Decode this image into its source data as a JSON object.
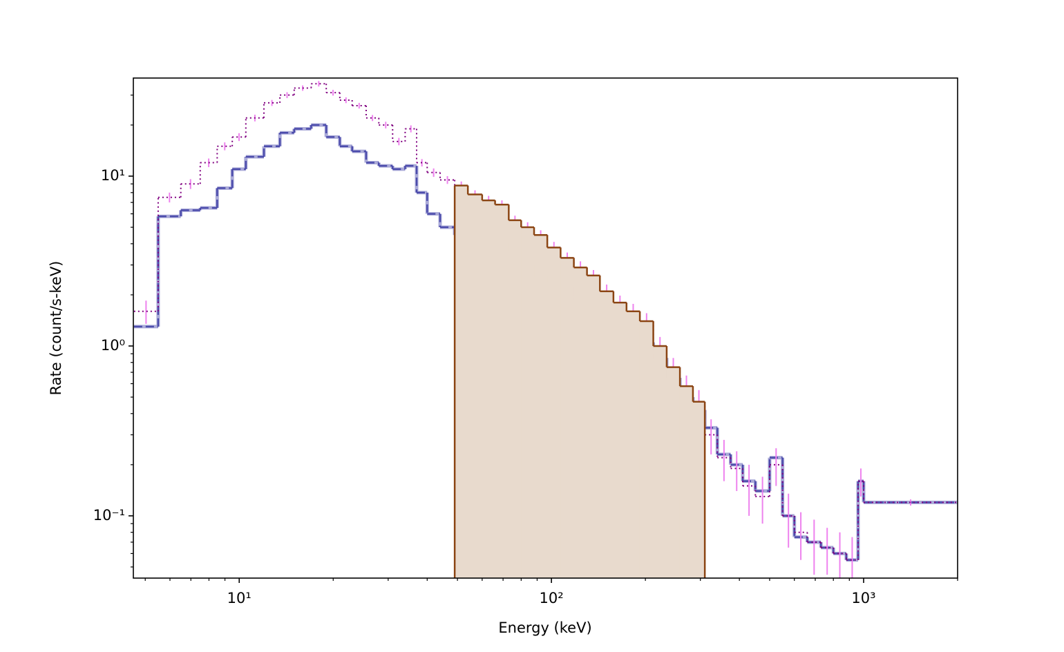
{
  "chart_data": {
    "type": "step",
    "xlabel": "Energy (keV)",
    "ylabel": "Rate (count/s-keV)",
    "xlog": true,
    "ylog": true,
    "xlim": [
      4.58,
      2000
    ],
    "ylim": [
      0.043,
      37.8
    ],
    "xticks": [
      {
        "value": 10,
        "label": "10¹"
      },
      {
        "value": 100,
        "label": "10²"
      },
      {
        "value": 1000,
        "label": "10³"
      }
    ],
    "yticks": [
      {
        "value": 0.1,
        "label": "10⁻¹"
      },
      {
        "value": 1,
        "label": "10⁰"
      },
      {
        "value": 10,
        "label": "10¹"
      }
    ],
    "xminorticks": [
      5,
      6,
      7,
      8,
      9,
      20,
      30,
      40,
      50,
      60,
      70,
      80,
      90,
      200,
      300,
      400,
      500,
      600,
      700,
      800,
      900,
      2000
    ],
    "yminorticks": [
      0.05,
      0.06,
      0.07,
      0.08,
      0.09,
      0.2,
      0.3,
      0.4,
      0.5,
      0.6,
      0.7,
      0.8,
      0.9,
      2,
      3,
      4,
      5,
      6,
      7,
      8,
      9,
      20,
      30
    ],
    "series": [
      {
        "style": "dashed",
        "color": "#4b4bab",
        "underlay": "#aaaad8",
        "bins": [
          4.6,
          5.5,
          6.5,
          7.5,
          8.5,
          9.5,
          10.5,
          12,
          13.5,
          15,
          17,
          19,
          21,
          23,
          25.5,
          28,
          31,
          34,
          37,
          40,
          44,
          49,
          54,
          60,
          66,
          73,
          80,
          88,
          97,
          107,
          118,
          130,
          143,
          158,
          174,
          192,
          212,
          234,
          258,
          284,
          310,
          340,
          375,
          410,
          450,
          500,
          550,
          600,
          660,
          730,
          800,
          880,
          960,
          1000,
          2000
        ],
        "values": [
          1.3,
          5.8,
          6.3,
          6.5,
          8.5,
          11,
          13,
          15,
          18,
          19,
          20,
          17,
          15,
          14,
          12,
          11.5,
          11,
          11.5,
          8,
          6,
          5,
          4.5,
          4.5,
          4.2,
          4.0,
          3.6,
          3.0,
          2.6,
          2.4,
          2.2,
          1.9,
          1.7,
          1.5,
          1.3,
          1.0,
          1.05,
          0.85,
          0.65,
          0.5,
          0.42,
          0.33,
          0.23,
          0.2,
          0.16,
          0.14,
          0.22,
          0.1,
          0.075,
          0.07,
          0.065,
          0.06,
          0.055,
          0.16,
          0.12
        ]
      },
      {
        "style": "dotted",
        "color": "#800080",
        "error_color": "#ee82ee",
        "bins": [
          4.6,
          5.5,
          6.5,
          7.5,
          8.5,
          9.5,
          10.5,
          12,
          13.5,
          15,
          17,
          19,
          21,
          23,
          25.5,
          28,
          31,
          34,
          37,
          40,
          44,
          49,
          54,
          60,
          66,
          73,
          80,
          88,
          97,
          107,
          118,
          130,
          143,
          158,
          174,
          192,
          212,
          234,
          258,
          284,
          310,
          340,
          375,
          410,
          450,
          500,
          550,
          600,
          660,
          730,
          800,
          880,
          960,
          1000,
          2000
        ],
        "values": [
          1.6,
          7.5,
          9,
          12,
          15,
          17,
          22,
          27,
          30,
          33,
          35,
          31,
          28,
          26,
          22,
          20,
          16,
          19,
          12,
          10.5,
          9.5,
          8.8,
          7.8,
          7.2,
          6.8,
          5.5,
          5.0,
          4.5,
          3.8,
          3.3,
          2.9,
          2.6,
          2.1,
          1.8,
          1.6,
          1.4,
          1.0,
          0.75,
          0.58,
          0.47,
          0.3,
          0.22,
          0.19,
          0.15,
          0.13,
          0.2,
          0.1,
          0.08,
          0.07,
          0.065,
          0.06,
          0.055,
          0.16,
          0.12
        ],
        "errors": [
          0.25,
          0.5,
          0.6,
          0.7,
          0.8,
          0.9,
          1.0,
          1.1,
          1.2,
          1.2,
          1.3,
          1.2,
          1.1,
          1.0,
          0.9,
          0.9,
          0.8,
          0.9,
          0.6,
          0.6,
          0.5,
          0.5,
          0.45,
          0.45,
          0.4,
          0.35,
          0.35,
          0.3,
          0.3,
          0.25,
          0.25,
          0.2,
          0.2,
          0.18,
          0.17,
          0.16,
          0.13,
          0.1,
          0.09,
          0.08,
          0.07,
          0.06,
          0.05,
          0.05,
          0.04,
          0.05,
          0.035,
          0.025,
          0.025,
          0.02,
          0.02,
          0.02,
          0.03,
          0.005
        ]
      },
      {
        "style": "solid",
        "color": "#8b4513",
        "fill": "#e8dacd",
        "bins": [
          49,
          54,
          60,
          66,
          73,
          80,
          88,
          97,
          107,
          118,
          130,
          143,
          158,
          174,
          192,
          212,
          234,
          258,
          284,
          310
        ],
        "values": [
          8.8,
          7.8,
          7.2,
          6.8,
          5.5,
          5.0,
          4.5,
          3.8,
          3.3,
          2.9,
          2.6,
          2.1,
          1.8,
          1.6,
          1.4,
          1.0,
          0.75,
          0.58,
          0.47
        ]
      }
    ]
  }
}
